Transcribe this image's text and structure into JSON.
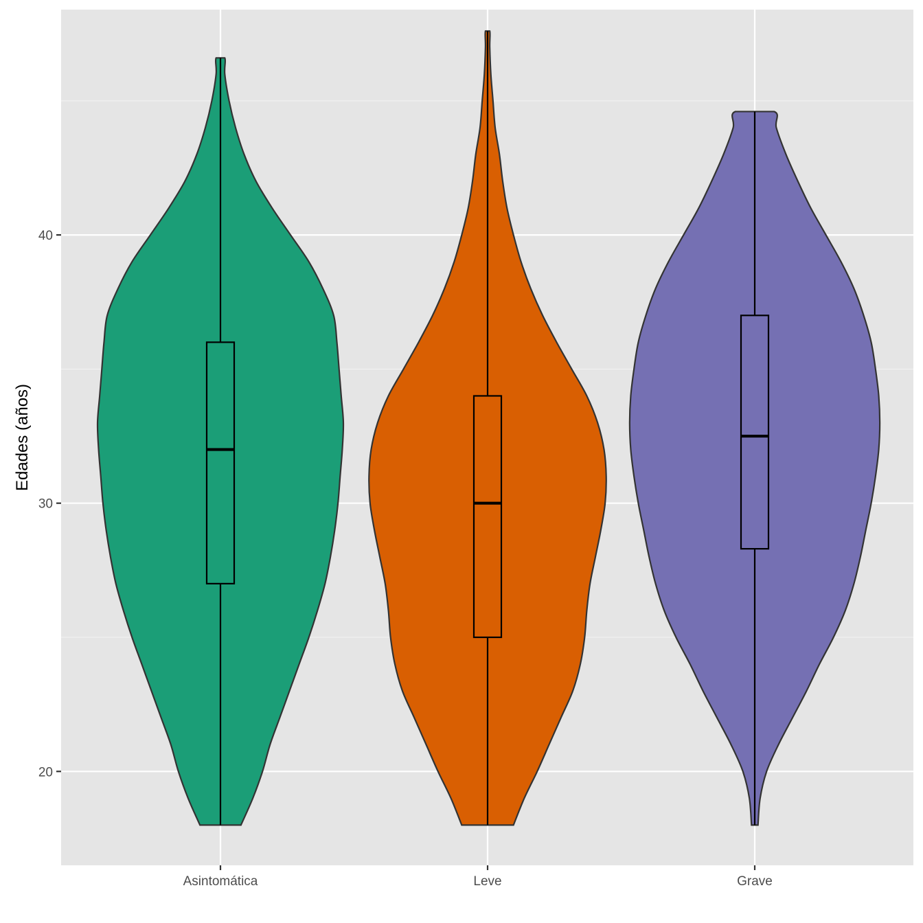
{
  "chart_data": {
    "type": "violin",
    "title": "",
    "xlabel": "",
    "ylabel": "Edades (años)",
    "ylim": [
      16.5,
      48.4
    ],
    "y_ticks": [
      20,
      30,
      40
    ],
    "y_tick_labels": [
      "20",
      "30",
      "40"
    ],
    "y_minor_ticks": [
      25,
      35,
      45
    ],
    "grid": true,
    "legend": "none",
    "categories": [
      "Asintomática",
      "Leve",
      "Grave"
    ],
    "series": [
      {
        "category": "Asintomática",
        "color": "#1b9e77",
        "box": {
          "min": 18,
          "q1": 27,
          "median": 32,
          "q3": 36,
          "max": 46.6
        },
        "density": [
          [
            18,
            0.19
          ],
          [
            19,
            0.3
          ],
          [
            20,
            0.39
          ],
          [
            21,
            0.46
          ],
          [
            22,
            0.55
          ],
          [
            23,
            0.64
          ],
          [
            24,
            0.73
          ],
          [
            25,
            0.82
          ],
          [
            26,
            0.9
          ],
          [
            27,
            0.97
          ],
          [
            28,
            1.02
          ],
          [
            29,
            1.06
          ],
          [
            30,
            1.09
          ],
          [
            31,
            1.11
          ],
          [
            32,
            1.13
          ],
          [
            33,
            1.14
          ],
          [
            34,
            1.12
          ],
          [
            35,
            1.1
          ],
          [
            36,
            1.08
          ],
          [
            37,
            1.05
          ],
          [
            38,
            0.95
          ],
          [
            39,
            0.82
          ],
          [
            40,
            0.65
          ],
          [
            41,
            0.48
          ],
          [
            42,
            0.33
          ],
          [
            43,
            0.22
          ],
          [
            44,
            0.14
          ],
          [
            45,
            0.08
          ],
          [
            46,
            0.04
          ],
          [
            46.6,
            0.04
          ]
        ]
      },
      {
        "category": "Leve",
        "color": "#d95f02",
        "box": {
          "min": 18,
          "q1": 25,
          "median": 30,
          "q3": 34,
          "max": 47.6
        },
        "density": [
          [
            18,
            0.24
          ],
          [
            19,
            0.34
          ],
          [
            20,
            0.46
          ],
          [
            21,
            0.57
          ],
          [
            22,
            0.68
          ],
          [
            23,
            0.79
          ],
          [
            24,
            0.86
          ],
          [
            25,
            0.9
          ],
          [
            26,
            0.92
          ],
          [
            27,
            0.95
          ],
          [
            28,
            1.0
          ],
          [
            29,
            1.05
          ],
          [
            30,
            1.09
          ],
          [
            31,
            1.1
          ],
          [
            32,
            1.08
          ],
          [
            33,
            1.02
          ],
          [
            34,
            0.92
          ],
          [
            35,
            0.78
          ],
          [
            36,
            0.64
          ],
          [
            37,
            0.51
          ],
          [
            38,
            0.4
          ],
          [
            39,
            0.31
          ],
          [
            40,
            0.24
          ],
          [
            41,
            0.18
          ],
          [
            42,
            0.14
          ],
          [
            43,
            0.11
          ],
          [
            44,
            0.07
          ],
          [
            45,
            0.05
          ],
          [
            46,
            0.03
          ],
          [
            47,
            0.02
          ],
          [
            47.6,
            0.02
          ]
        ]
      },
      {
        "category": "Grave",
        "color": "#7570b3",
        "box": {
          "min": 18,
          "q1": 28.3,
          "median": 32.5,
          "q3": 37,
          "max": 44.6
        },
        "density": [
          [
            18,
            0.03
          ],
          [
            19,
            0.05
          ],
          [
            20,
            0.11
          ],
          [
            21,
            0.22
          ],
          [
            22,
            0.35
          ],
          [
            23,
            0.48
          ],
          [
            24,
            0.6
          ],
          [
            25,
            0.73
          ],
          [
            26,
            0.84
          ],
          [
            27,
            0.92
          ],
          [
            28,
            0.98
          ],
          [
            29,
            1.03
          ],
          [
            30,
            1.08
          ],
          [
            31,
            1.12
          ],
          [
            32,
            1.15
          ],
          [
            33,
            1.16
          ],
          [
            34,
            1.15
          ],
          [
            35,
            1.12
          ],
          [
            36,
            1.08
          ],
          [
            37,
            1.01
          ],
          [
            38,
            0.92
          ],
          [
            39,
            0.8
          ],
          [
            40,
            0.66
          ],
          [
            41,
            0.52
          ],
          [
            42,
            0.4
          ],
          [
            43,
            0.29
          ],
          [
            44,
            0.2
          ],
          [
            44.6,
            0.18
          ]
        ]
      }
    ]
  }
}
